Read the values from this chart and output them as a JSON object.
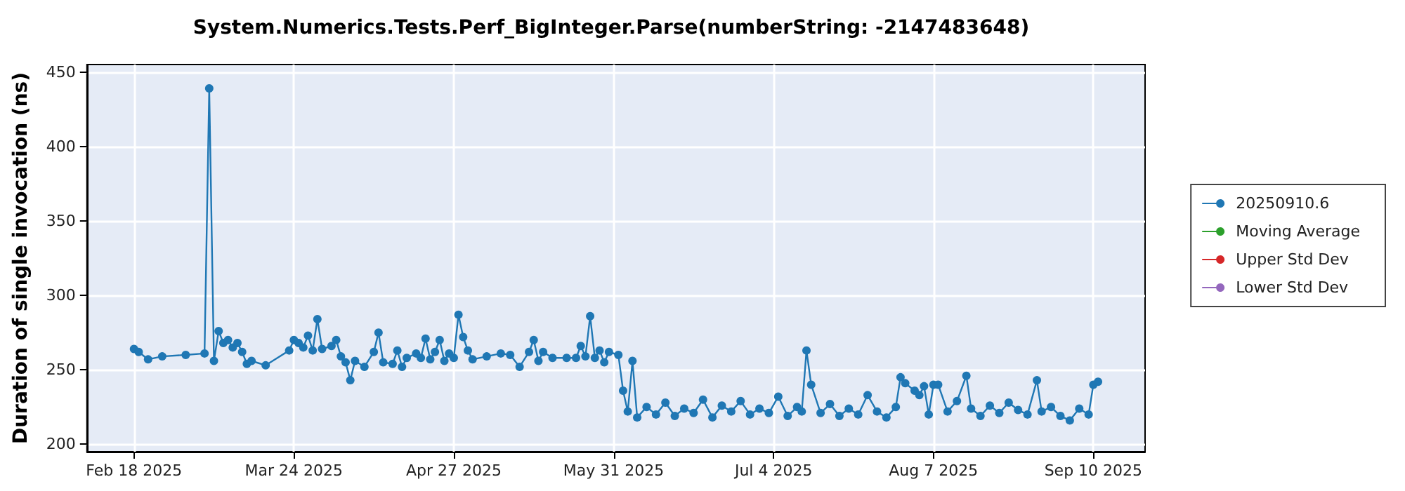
{
  "chart_data": {
    "type": "line",
    "title": "System.Numerics.Tests.Perf_BigInteger.Parse(numberString: -2147483648)",
    "ylabel": "Duration of single invocation (ns)",
    "xlim": [
      "2025-02-08",
      "2025-09-21"
    ],
    "ylim": [
      195,
      455
    ],
    "xticks": [
      {
        "value": "2025-02-18",
        "label": "Feb 18 2025"
      },
      {
        "value": "2025-03-24",
        "label": "Mar 24 2025"
      },
      {
        "value": "2025-04-27",
        "label": "Apr 27 2025"
      },
      {
        "value": "2025-05-31",
        "label": "May 31 2025"
      },
      {
        "value": "2025-07-04",
        "label": "Jul 4 2025"
      },
      {
        "value": "2025-08-07",
        "label": "Aug 7 2025"
      },
      {
        "value": "2025-09-10",
        "label": "Sep 10 2025"
      }
    ],
    "yticks": [
      200,
      250,
      300,
      350,
      400,
      450
    ],
    "grid": true,
    "legend": "right",
    "marker": "circle",
    "line_style": "solid",
    "series": [
      {
        "name": "20250910.6",
        "color": "#1f77b4",
        "x": [
          "2025-02-18",
          "2025-02-19",
          "2025-02-21",
          "2025-02-24",
          "2025-03-01",
          "2025-03-05",
          "2025-03-06",
          "2025-03-07",
          "2025-03-08",
          "2025-03-09",
          "2025-03-10",
          "2025-03-11",
          "2025-03-12",
          "2025-03-13",
          "2025-03-14",
          "2025-03-15",
          "2025-03-18",
          "2025-03-23",
          "2025-03-24",
          "2025-03-25",
          "2025-03-26",
          "2025-03-27",
          "2025-03-28",
          "2025-03-29",
          "2025-03-30",
          "2025-04-01",
          "2025-04-02",
          "2025-04-03",
          "2025-04-04",
          "2025-04-05",
          "2025-04-06",
          "2025-04-08",
          "2025-04-10",
          "2025-04-11",
          "2025-04-12",
          "2025-04-14",
          "2025-04-15",
          "2025-04-16",
          "2025-04-17",
          "2025-04-19",
          "2025-04-20",
          "2025-04-21",
          "2025-04-22",
          "2025-04-23",
          "2025-04-24",
          "2025-04-25",
          "2025-04-26",
          "2025-04-27",
          "2025-04-28",
          "2025-04-29",
          "2025-04-30",
          "2025-05-01",
          "2025-05-04",
          "2025-05-07",
          "2025-05-09",
          "2025-05-11",
          "2025-05-13",
          "2025-05-14",
          "2025-05-15",
          "2025-05-16",
          "2025-05-18",
          "2025-05-21",
          "2025-05-23",
          "2025-05-24",
          "2025-05-25",
          "2025-05-26",
          "2025-05-27",
          "2025-05-28",
          "2025-05-29",
          "2025-05-30",
          "2025-06-01",
          "2025-06-02",
          "2025-06-03",
          "2025-06-04",
          "2025-06-05",
          "2025-06-07",
          "2025-06-09",
          "2025-06-11",
          "2025-06-13",
          "2025-06-15",
          "2025-06-17",
          "2025-06-19",
          "2025-06-21",
          "2025-06-23",
          "2025-06-25",
          "2025-06-27",
          "2025-06-29",
          "2025-07-01",
          "2025-07-03",
          "2025-07-05",
          "2025-07-07",
          "2025-07-09",
          "2025-07-10",
          "2025-07-11",
          "2025-07-12",
          "2025-07-14",
          "2025-07-16",
          "2025-07-18",
          "2025-07-20",
          "2025-07-22",
          "2025-07-24",
          "2025-07-26",
          "2025-07-28",
          "2025-07-30",
          "2025-07-31",
          "2025-08-01",
          "2025-08-03",
          "2025-08-04",
          "2025-08-05",
          "2025-08-06",
          "2025-08-07",
          "2025-08-08",
          "2025-08-10",
          "2025-08-12",
          "2025-08-14",
          "2025-08-15",
          "2025-08-17",
          "2025-08-19",
          "2025-08-21",
          "2025-08-23",
          "2025-08-25",
          "2025-08-27",
          "2025-08-29",
          "2025-08-30",
          "2025-09-01",
          "2025-09-03",
          "2025-09-05",
          "2025-09-07",
          "2025-09-09",
          "2025-09-10",
          "2025-09-11"
        ],
        "values": [
          264,
          262,
          257,
          259,
          260,
          261,
          439,
          256,
          276,
          268,
          270,
          265,
          268,
          262,
          254,
          256,
          253,
          263,
          270,
          268,
          265,
          273,
          263,
          284,
          264,
          266,
          270,
          259,
          255,
          243,
          256,
          252,
          262,
          275,
          255,
          254,
          263,
          252,
          258,
          261,
          258,
          271,
          257,
          262,
          270,
          256,
          261,
          258,
          287,
          272,
          263,
          257,
          259,
          261,
          260,
          252,
          262,
          270,
          256,
          262,
          258,
          258,
          258,
          266,
          259,
          286,
          258,
          263,
          255,
          262,
          260,
          236,
          222,
          256,
          218,
          225,
          220,
          228,
          219,
          224,
          221,
          230,
          218,
          226,
          222,
          229,
          220,
          224,
          221,
          232,
          219,
          225,
          222,
          263,
          240,
          221,
          227,
          219,
          224,
          220,
          233,
          222,
          218,
          225,
          245,
          241,
          236,
          233,
          239,
          220,
          240,
          240,
          222,
          229,
          246,
          224,
          219,
          226,
          221,
          228,
          223,
          220,
          243,
          222,
          225,
          219,
          216,
          224,
          220,
          240,
          242
        ]
      },
      {
        "name": "Moving Average",
        "color": "#2ca02c"
      },
      {
        "name": "Upper Std Dev",
        "color": "#d62728"
      },
      {
        "name": "Lower Std Dev",
        "color": "#9467bd"
      }
    ]
  }
}
